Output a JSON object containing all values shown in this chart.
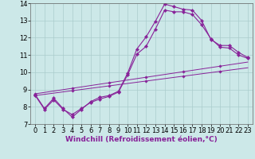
{
  "xlabel": "Windchill (Refroidissement éolien,°C)",
  "bg_color": "#cce8e8",
  "grid_color": "#aacccc",
  "line_color": "#882299",
  "xmin": -0.5,
  "xmax": 23.5,
  "ymin": 7,
  "ymax": 14,
  "series": [
    {
      "x": [
        0,
        1,
        2,
        3,
        4,
        5,
        6,
        7,
        8,
        9,
        10,
        11,
        12,
        13,
        14,
        15,
        16,
        17,
        18,
        19,
        20,
        21,
        22,
        23
      ],
      "y": [
        8.7,
        7.9,
        8.5,
        7.9,
        7.4,
        7.85,
        8.3,
        8.55,
        8.65,
        8.9,
        9.95,
        11.35,
        12.05,
        12.95,
        13.95,
        13.8,
        13.65,
        13.6,
        13.0,
        11.9,
        11.55,
        11.55,
        11.15,
        10.85
      ]
    },
    {
      "x": [
        0,
        1,
        2,
        3,
        4,
        5,
        6,
        7,
        8,
        9,
        10,
        11,
        12,
        13,
        14,
        15,
        16,
        17,
        18,
        19,
        20,
        21,
        22,
        23
      ],
      "y": [
        8.65,
        7.85,
        8.4,
        7.85,
        7.55,
        7.9,
        8.25,
        8.45,
        8.6,
        8.85,
        9.85,
        11.05,
        11.5,
        12.5,
        13.6,
        13.5,
        13.5,
        13.35,
        12.75,
        11.95,
        11.45,
        11.4,
        11.0,
        10.8
      ]
    },
    {
      "x": [
        0,
        1,
        2,
        3,
        4,
        5,
        6,
        7,
        8,
        9,
        10,
        11,
        12,
        13,
        14,
        15,
        16,
        17,
        18,
        19,
        20,
        21,
        22,
        23
      ],
      "y": [
        8.65,
        8.72,
        8.79,
        8.86,
        8.93,
        9.0,
        9.07,
        9.14,
        9.21,
        9.28,
        9.35,
        9.42,
        9.49,
        9.56,
        9.63,
        9.7,
        9.77,
        9.84,
        9.91,
        9.98,
        10.05,
        10.12,
        10.19,
        10.26
      ]
    },
    {
      "x": [
        0,
        1,
        2,
        3,
        4,
        5,
        6,
        7,
        8,
        9,
        10,
        11,
        12,
        13,
        14,
        15,
        16,
        17,
        18,
        19,
        20,
        21,
        22,
        23
      ],
      "y": [
        8.75,
        8.83,
        8.91,
        8.99,
        9.07,
        9.15,
        9.23,
        9.31,
        9.39,
        9.47,
        9.55,
        9.63,
        9.71,
        9.79,
        9.87,
        9.95,
        10.03,
        10.11,
        10.19,
        10.27,
        10.35,
        10.43,
        10.51,
        10.59
      ]
    }
  ],
  "xticks": [
    0,
    1,
    2,
    3,
    4,
    5,
    6,
    7,
    8,
    9,
    10,
    11,
    12,
    13,
    14,
    15,
    16,
    17,
    18,
    19,
    20,
    21,
    22,
    23
  ],
  "yticks": [
    7,
    8,
    9,
    10,
    11,
    12,
    13,
    14
  ],
  "xlabel_fontsize": 6.5,
  "tick_fontsize": 6
}
